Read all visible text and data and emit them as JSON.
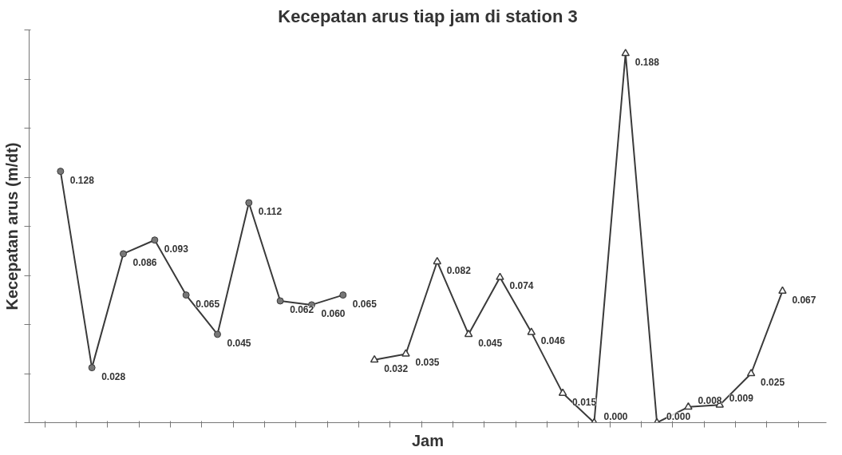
{
  "chart_data": {
    "type": "line",
    "title": "Kecepatan arus tiap jam di station 3",
    "xlabel": "Jam",
    "ylabel": "Kecepatan arus (m/dt)",
    "categories": [
      null,
      null,
      null,
      null,
      null,
      null,
      null,
      null,
      null,
      null,
      null,
      null,
      null,
      null,
      null,
      null,
      null,
      null,
      null,
      null,
      null,
      null,
      null,
      null
    ],
    "series": [
      {
        "color": "#3a3a3a",
        "marker": "circle",
        "values": [
          0.128,
          0.028,
          0.086,
          0.093,
          0.065,
          0.045,
          0.112,
          0.062,
          0.06,
          0.065,
          null,
          null,
          null,
          null,
          null,
          null,
          null,
          null,
          null,
          null,
          null,
          null,
          null,
          null
        ],
        "value_labels": [
          "0.128",
          "0.028",
          "0.086",
          "0.093",
          "0.065",
          "0.045",
          "0.112",
          "0.062",
          "0.060",
          "0.065",
          null,
          null,
          null,
          null,
          null,
          null,
          null,
          null,
          null,
          null,
          null,
          null,
          null,
          null
        ]
      },
      {
        "color": "#3a3a3a",
        "marker": "triangle",
        "values": [
          null,
          null,
          null,
          null,
          null,
          null,
          null,
          null,
          null,
          null,
          0.032,
          0.035,
          0.082,
          0.045,
          0.074,
          0.046,
          0.015,
          0.0,
          0.188,
          0.0,
          0.008,
          0.009,
          0.025,
          0.067
        ],
        "value_labels": [
          null,
          null,
          null,
          null,
          null,
          null,
          null,
          null,
          null,
          null,
          "0.032",
          "0.035",
          "0.082",
          "0.045",
          "0.074",
          "0.046",
          "0.015",
          "0.000",
          "0.188",
          "0.000",
          "0.008",
          "0.009",
          "0.025",
          "0.067"
        ]
      }
    ],
    "ylim": [
      0,
      0.2
    ],
    "yticks": [
      {
        "value": 0,
        "label": null
      },
      {
        "value": 0.025,
        "label": null
      },
      {
        "value": 0.05,
        "label": null
      },
      {
        "value": 0.075,
        "label": null
      },
      {
        "value": 0.1,
        "label": null
      },
      {
        "value": 0.125,
        "label": null
      },
      {
        "value": 0.15,
        "label": null
      },
      {
        "value": 0.175,
        "label": null
      },
      {
        "value": 0.2,
        "label": null
      }
    ],
    "tick_labels": false,
    "grid": false,
    "line_style": "solid"
  }
}
